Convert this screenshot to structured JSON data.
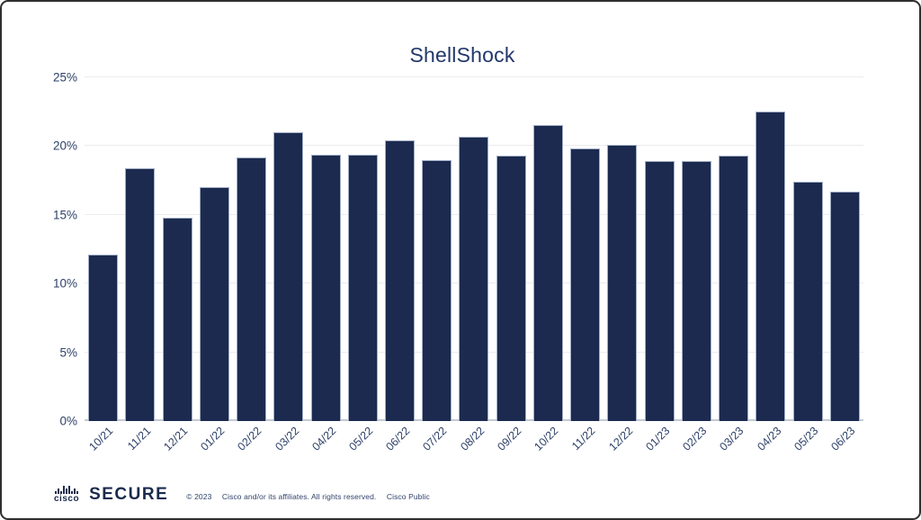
{
  "chart_data": {
    "type": "bar",
    "title": "ShellShock",
    "categories": [
      "10/21",
      "11/21",
      "12/21",
      "01/22",
      "02/22",
      "03/22",
      "04/22",
      "05/22",
      "06/22",
      "07/22",
      "08/22",
      "09/22",
      "10/22",
      "11/22",
      "12/22",
      "01/23",
      "02/23",
      "03/23",
      "04/23",
      "05/23",
      "06/23"
    ],
    "values": [
      12.1,
      18.4,
      14.8,
      17.0,
      19.2,
      21.0,
      19.4,
      19.4,
      20.4,
      19.0,
      20.7,
      19.3,
      21.5,
      19.8,
      20.1,
      18.9,
      18.9,
      19.3,
      22.5,
      17.4,
      16.7
    ],
    "xlabel": "",
    "ylabel": "",
    "ylim": [
      0,
      25
    ],
    "yticks": [
      0,
      5,
      10,
      15,
      20,
      25
    ],
    "ytick_labels": [
      "0%",
      "5%",
      "10%",
      "15%",
      "20%",
      "25%"
    ],
    "grid": "horizontal",
    "legend": "none",
    "bar_color": "#1b2a4e",
    "bar_edge_color": "#a2aec6"
  },
  "footer": {
    "brand": {
      "logo_text": "cisco",
      "product": "SECURE",
      "logo_bar_heights": [
        3,
        6,
        3,
        9,
        6,
        9,
        3,
        6,
        3
      ]
    },
    "copyright": "© 2023",
    "rights": "Cisco and/or its affiliates. All rights reserved.",
    "classification": "Cisco Public"
  },
  "colors": {
    "bar": "#1b2a4e",
    "bar_edge": "#a2aec6",
    "title_text": "#22386b",
    "tick_text": "#2e4168",
    "gridline": "#ebecf0",
    "axis_line": "#c6cbd3",
    "frame_border": "#2e2e2e",
    "background": "#ffffff"
  }
}
